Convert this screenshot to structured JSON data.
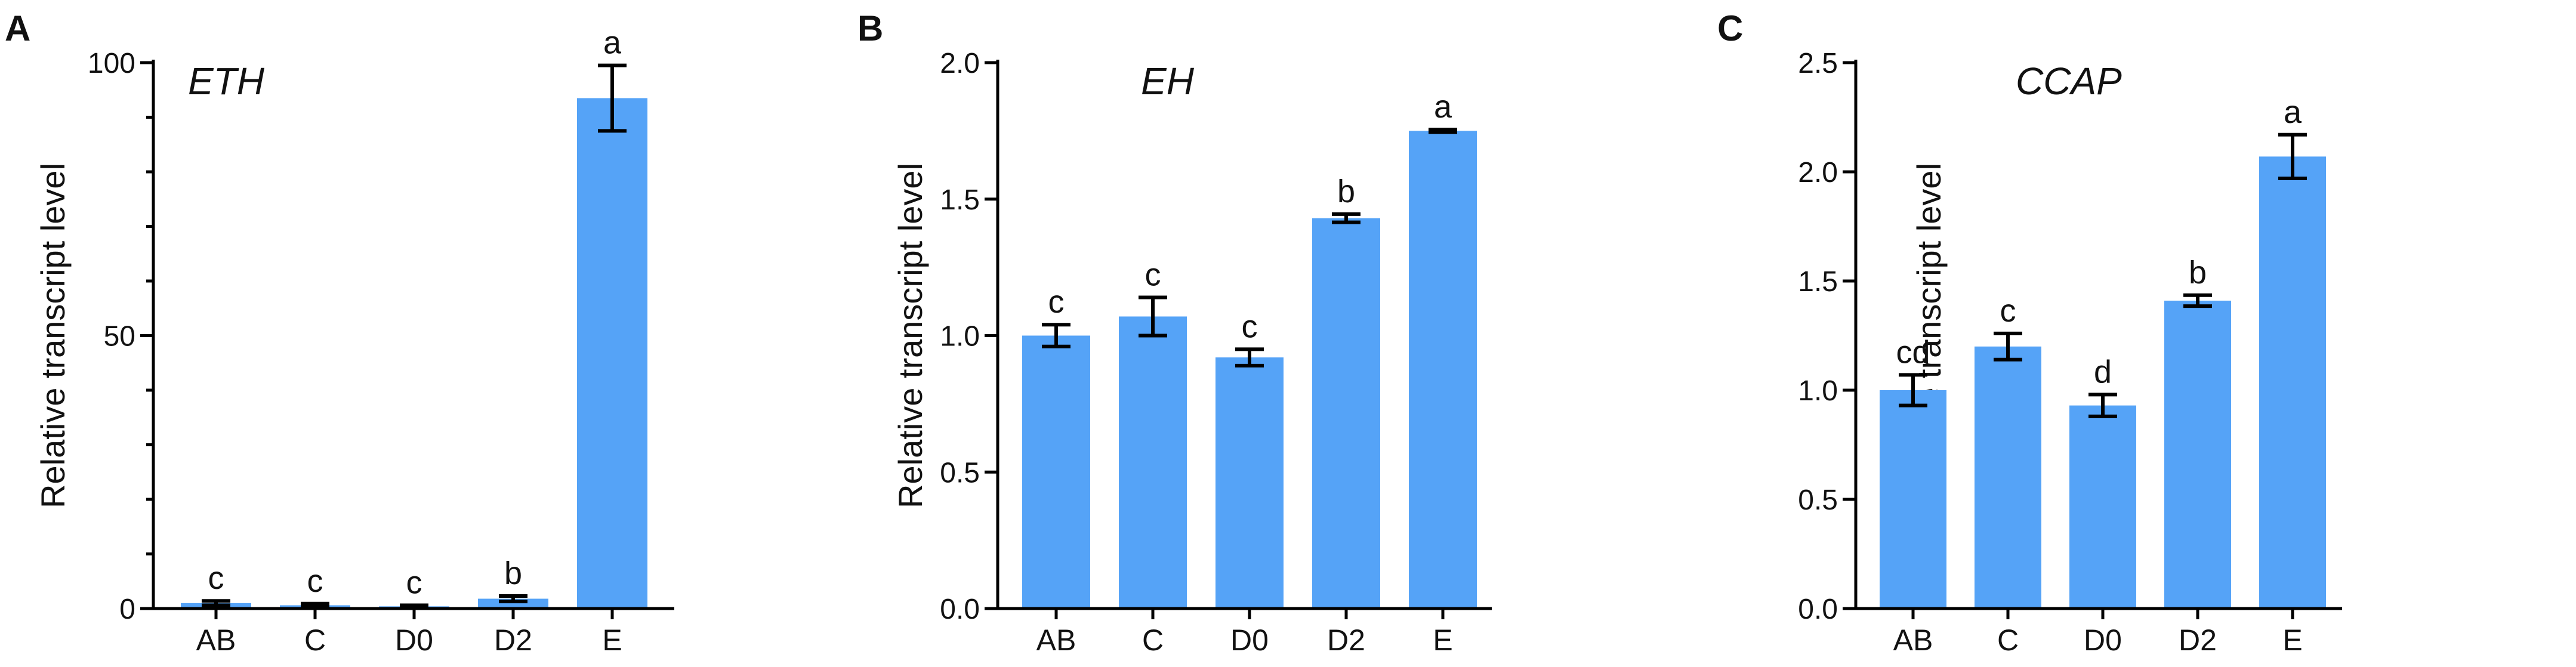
{
  "colors": {
    "bar": "#55a3f7",
    "axis": "#000000"
  },
  "chart_data": [
    {
      "type": "bar",
      "panel": "A",
      "gene": "ETH",
      "ylabel": "Relative transcript level",
      "categories": [
        "AB",
        "C",
        "D0",
        "D2",
        "E"
      ],
      "values": [
        1,
        0.6,
        0.4,
        1.8,
        93.5
      ],
      "errors": [
        0.4,
        0.3,
        0.2,
        0.5,
        6
      ],
      "letters": [
        "c",
        "c",
        "c",
        "b",
        "a"
      ],
      "ylim": [
        0,
        100
      ],
      "yticks_major": [
        0,
        50,
        100
      ],
      "yticks_major_labels": [
        "0",
        "50",
        "100"
      ],
      "yticks_minor_step": 10
    },
    {
      "type": "bar",
      "panel": "B",
      "gene": "EH",
      "ylabel": "Relative transcript level",
      "categories": [
        "AB",
        "C",
        "D0",
        "D2",
        "E"
      ],
      "values": [
        1.0,
        1.07,
        0.92,
        1.43,
        1.75
      ],
      "errors": [
        0.04,
        0.07,
        0.03,
        0.015,
        0.005
      ],
      "letters": [
        "c",
        "c",
        "c",
        "b",
        "a"
      ],
      "ylim": [
        0,
        2.0
      ],
      "yticks_major": [
        0,
        0.5,
        1.0,
        1.5,
        2.0
      ],
      "yticks_major_labels": [
        "0.0",
        "0.5",
        "1.0",
        "1.5",
        "2.0"
      ],
      "yticks_minor_step": 0
    },
    {
      "type": "bar",
      "panel": "C",
      "gene": "CCAP",
      "ylabel": "Relative transcript level",
      "categories": [
        "AB",
        "C",
        "D0",
        "D2",
        "E"
      ],
      "values": [
        1.0,
        1.2,
        0.93,
        1.41,
        2.07
      ],
      "errors": [
        0.07,
        0.06,
        0.05,
        0.025,
        0.1
      ],
      "letters": [
        "cd",
        "c",
        "d",
        "b",
        "a"
      ],
      "ylim": [
        0,
        2.5
      ],
      "yticks_major": [
        0,
        0.5,
        1.0,
        1.5,
        2.0,
        2.5
      ],
      "yticks_major_labels": [
        "0.0",
        "0.5",
        "1.0",
        "1.5",
        "2.0",
        "2.5"
      ],
      "yticks_minor_step": 0
    }
  ]
}
